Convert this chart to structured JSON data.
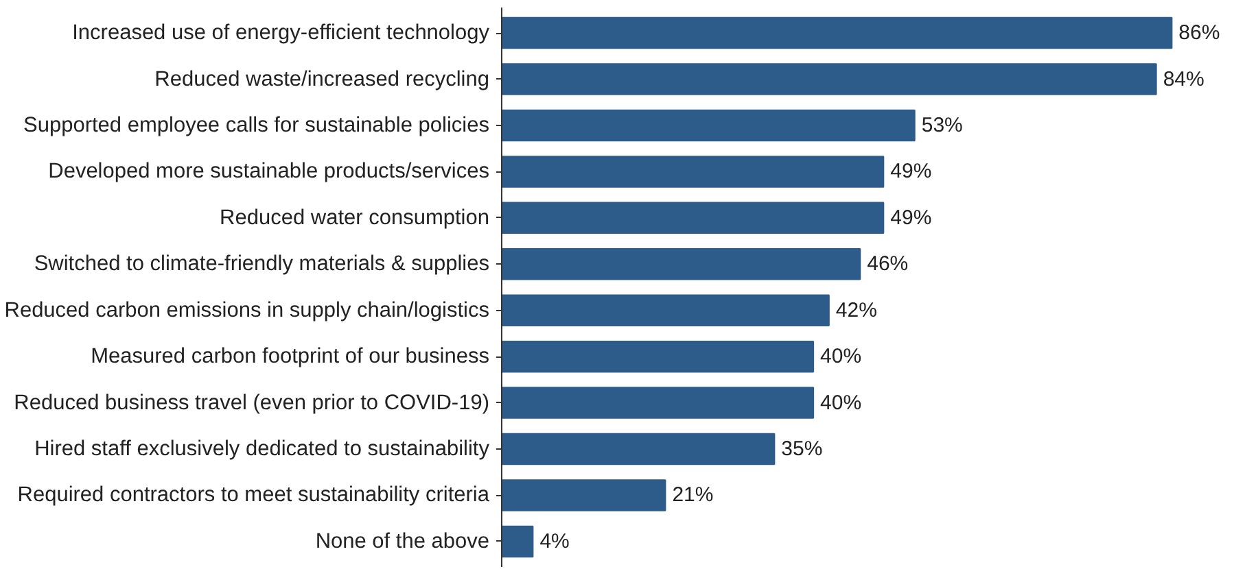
{
  "chart_data": {
    "type": "bar",
    "orientation": "horizontal",
    "color": "#2e5c8a",
    "categories": [
      "Increased use of energy-efficient technology",
      "Reduced waste/increased recycling",
      "Supported employee calls for sustainable policies",
      "Developed more sustainable products/services",
      "Reduced water consumption",
      "Switched to climate-friendly materials & supplies",
      "Reduced carbon emissions in supply chain/logistics",
      "Measured carbon footprint of our business",
      "Reduced business travel (even prior to COVID-19)",
      "Hired staff exclusively dedicated to sustainability",
      "Required contractors to meet sustainability criteria",
      "None of the above"
    ],
    "values": [
      86,
      84,
      53,
      49,
      49,
      46,
      42,
      40,
      40,
      35,
      21,
      4
    ],
    "value_labels": [
      "86%",
      "84%",
      "53%",
      "49%",
      "49%",
      "46%",
      "42%",
      "40%",
      "40%",
      "35%",
      "21%",
      "4%"
    ]
  }
}
